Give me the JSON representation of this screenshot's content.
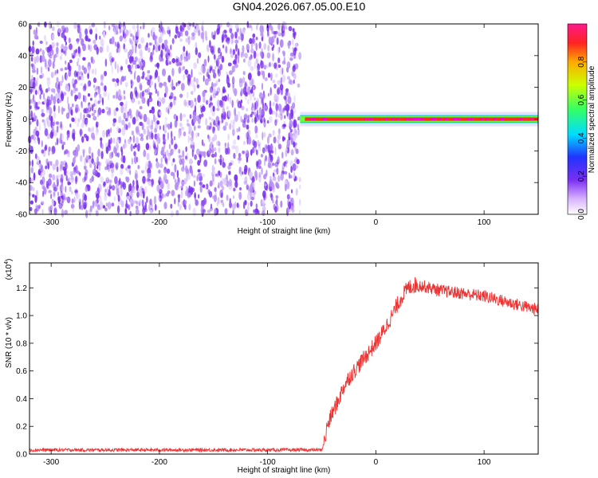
{
  "title": "GN04.2026.067.05.00.E10",
  "colors": {
    "snr_line": "#ee3333",
    "noise": "#7a2ff0",
    "axis": "#000000"
  },
  "chart_data": [
    {
      "type": "heatmap",
      "xlabel": "Height of straight line (km)",
      "ylabel": "Frequency (Hz)",
      "xlim": [
        -320,
        150
      ],
      "ylim": [
        -60,
        60
      ],
      "xticks": [
        -300,
        -200,
        -100,
        0,
        100
      ],
      "xtick_labels": [
        "-300",
        "-200",
        "-100",
        "0",
        "100"
      ],
      "yticks": [
        -60,
        -40,
        -20,
        0,
        20,
        40,
        60
      ],
      "ytick_labels": [
        "-60",
        "-40",
        "-20",
        "0",
        "20",
        "40",
        "60"
      ],
      "noise_region_x": [
        -320,
        -70
      ],
      "signal_band": {
        "x": [
          -70,
          150
        ],
        "frequency_center": 0,
        "frequency_halfwidth": 2.5
      },
      "colorbar": {
        "label": "Normalized spectral amplitude",
        "range": [
          0,
          1
        ],
        "ticks": [
          0.0,
          0.2,
          0.4,
          0.6,
          0.8
        ],
        "tick_labels": [
          "0.0",
          "0.2",
          "0.4",
          "0.6",
          "0.8"
        ]
      }
    },
    {
      "type": "line",
      "xlabel": "Height of straight line (km)",
      "ylabel": "SNR (10 * v/v)",
      "scale_label": "(x10",
      "scale_exponent": "4",
      "scale_close": ")",
      "xlim": [
        -320,
        150
      ],
      "ylim": [
        0,
        1.38
      ],
      "xticks": [
        -300,
        -200,
        -100,
        0,
        100
      ],
      "xtick_labels": [
        "-300",
        "-200",
        "-100",
        "0",
        "100"
      ],
      "yticks": [
        0.0,
        0.2,
        0.4,
        0.6,
        0.8,
        1.0,
        1.2
      ],
      "ytick_labels": [
        "0.0",
        "0.2",
        "0.4",
        "0.6",
        "0.8",
        "1.0",
        "1.2"
      ],
      "series": [
        {
          "x": [
            -320,
            -250,
            -180,
            -100,
            -50,
            -47,
            -45,
            -40,
            -35,
            -30,
            -25,
            -20,
            -15,
            -10,
            -5,
            0,
            5,
            10,
            15,
            20,
            25,
            30,
            35,
            40,
            50,
            60,
            70,
            80,
            90,
            100,
            110,
            120,
            130,
            140,
            150
          ],
          "values": [
            0.03,
            0.03,
            0.03,
            0.03,
            0.03,
            0.1,
            0.2,
            0.3,
            0.38,
            0.48,
            0.55,
            0.6,
            0.65,
            0.7,
            0.75,
            0.8,
            0.86,
            0.93,
            1.0,
            1.08,
            1.15,
            1.2,
            1.22,
            1.22,
            1.2,
            1.18,
            1.17,
            1.16,
            1.15,
            1.14,
            1.12,
            1.1,
            1.08,
            1.06,
            1.04
          ]
        }
      ]
    }
  ]
}
